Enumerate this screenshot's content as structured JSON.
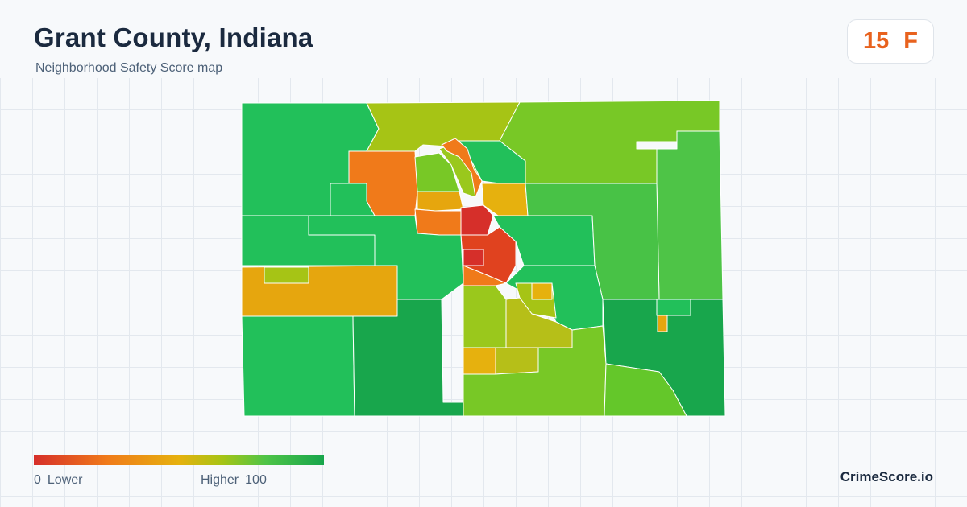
{
  "header": {
    "title": "Grant County, Indiana",
    "subtitle": "Neighborhood Safety Score map"
  },
  "score_badge": {
    "score": "15",
    "grade": "F",
    "color": "#e8621e"
  },
  "map": {
    "region": "Grant County, Indiana",
    "metric": "Neighborhood Safety Score",
    "scale": {
      "min": 0,
      "max": 100
    },
    "palette": {
      "score_0": "#d62f2a",
      "score_25": "#f07a1a",
      "score_50": "#e6b10e",
      "score_65": "#a6c415",
      "score_75": "#78c826",
      "score_85": "#22c05a",
      "score_100": "#18a64c"
    },
    "tracts": [
      {
        "name": "tract-northwest",
        "score": 86
      },
      {
        "name": "tract-north-central",
        "score": 66
      },
      {
        "name": "tract-northeast",
        "score": 76
      },
      {
        "name": "tract-east-strip",
        "score": 80
      },
      {
        "name": "tract-northwest-city-edge",
        "score": 26
      },
      {
        "name": "tract-north-city-1",
        "score": 74
      },
      {
        "name": "tract-north-city-2",
        "score": 70
      },
      {
        "name": "tract-north-city-corridor",
        "score": 28
      },
      {
        "name": "tract-north-city-3",
        "score": 85
      },
      {
        "name": "tract-northeast-city",
        "score": 48
      },
      {
        "name": "tract-city-core-1",
        "score": 10
      },
      {
        "name": "tract-city-core-2",
        "score": 15
      },
      {
        "name": "tract-city-core-3",
        "score": 20
      },
      {
        "name": "tract-city-west",
        "score": 30
      },
      {
        "name": "tract-west-central",
        "score": 86
      },
      {
        "name": "tract-central",
        "score": 85
      },
      {
        "name": "tract-east-central",
        "score": 84
      },
      {
        "name": "tract-southwest-band",
        "score": 52
      },
      {
        "name": "tract-southwest",
        "score": 86
      },
      {
        "name": "tract-south-west-2",
        "score": 92
      },
      {
        "name": "tract-south-central",
        "score": 74
      },
      {
        "name": "tract-south-city",
        "score": 62
      },
      {
        "name": "tract-southeast",
        "score": 93
      },
      {
        "name": "tract-south-east-2",
        "score": 80
      },
      {
        "name": "tract-small-east",
        "score": 48
      }
    ]
  },
  "legend": {
    "min_value": "0",
    "min_label": "Lower",
    "max_label": "Higher",
    "max_value": "100"
  },
  "brand": {
    "name": "CrimeScore.io"
  }
}
